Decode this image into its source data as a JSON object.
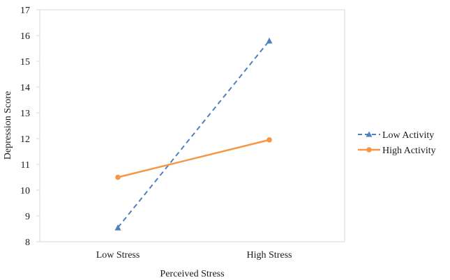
{
  "chart_data": {
    "type": "line",
    "categories": [
      "Low Stress",
      "High Stress"
    ],
    "xlabel": "Perceived Stress",
    "ylabel": "Depression Score",
    "ylim": [
      8,
      17
    ],
    "yticks": [
      8,
      9,
      10,
      11,
      12,
      13,
      14,
      15,
      16,
      17
    ],
    "grid": false,
    "legend": "right",
    "series": [
      {
        "name": "Low Activity",
        "values": [
          8.55,
          15.8
        ],
        "color": "#4f81bd",
        "marker": "triangle",
        "line_style": "dashed"
      },
      {
        "name": "High Activity",
        "values": [
          10.5,
          11.95
        ],
        "color": "#f79646",
        "marker": "circle",
        "line_style": "solid"
      }
    ]
  }
}
